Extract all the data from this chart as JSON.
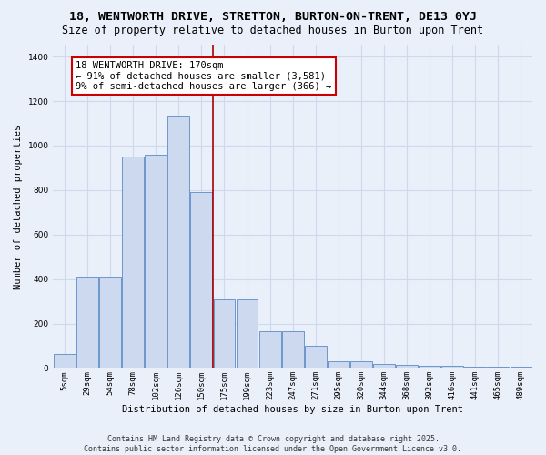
{
  "title": "18, WENTWORTH DRIVE, STRETTON, BURTON-ON-TRENT, DE13 0YJ",
  "subtitle": "Size of property relative to detached houses in Burton upon Trent",
  "xlabel": "Distribution of detached houses by size in Burton upon Trent",
  "ylabel": "Number of detached properties",
  "categories": [
    "5sqm",
    "29sqm",
    "54sqm",
    "78sqm",
    "102sqm",
    "126sqm",
    "150sqm",
    "175sqm",
    "199sqm",
    "223sqm",
    "247sqm",
    "271sqm",
    "295sqm",
    "320sqm",
    "344sqm",
    "368sqm",
    "392sqm",
    "416sqm",
    "441sqm",
    "465sqm",
    "489sqm"
  ],
  "values": [
    65,
    410,
    410,
    950,
    960,
    1130,
    790,
    310,
    310,
    165,
    165,
    100,
    30,
    30,
    20,
    15,
    10,
    10,
    5,
    5,
    5
  ],
  "bar_color": "#cdd9ee",
  "bar_edge_color": "#5b8ac5",
  "background_color": "#eaf0fa",
  "grid_color": "#d0d8ec",
  "vline_color": "#aa0000",
  "vline_x_index": 7,
  "annotation_text": "18 WENTWORTH DRIVE: 170sqm\n← 91% of detached houses are smaller (3,581)\n9% of semi-detached houses are larger (366) →",
  "annotation_box_color": "#ffffff",
  "annotation_box_edge_color": "#cc0000",
  "ylim": [
    0,
    1450
  ],
  "yticks": [
    0,
    200,
    400,
    600,
    800,
    1000,
    1200,
    1400
  ],
  "footer_line1": "Contains HM Land Registry data © Crown copyright and database right 2025.",
  "footer_line2": "Contains public sector information licensed under the Open Government Licence v3.0.",
  "title_fontsize": 9.5,
  "subtitle_fontsize": 8.5,
  "axis_fontsize": 7.5,
  "tick_fontsize": 6.5,
  "footer_fontsize": 6.0,
  "annotation_fontsize": 7.5
}
